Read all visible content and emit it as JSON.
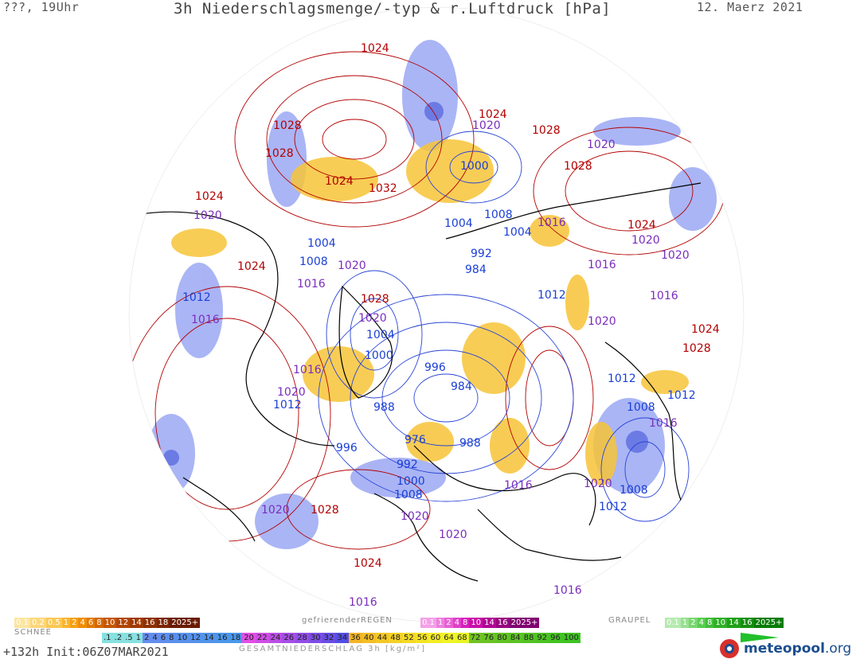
{
  "header": {
    "left": "???, 19Uhr",
    "title": "3h Niederschlagsmenge/-typ & r.Luftdruck [hPa]",
    "date": "12. Maerz 2021"
  },
  "colors": {
    "high_isobar": "#b30000",
    "low_isobar": "#1a3fd6",
    "mid_isobar": "#7a2dbd",
    "rain": "#f5b000",
    "snow": "#7a8cf0",
    "coast": "#000000"
  },
  "isobar_labels": [
    {
      "text": "1024",
      "cls": "high"
    },
    {
      "text": "1028",
      "cls": "high"
    },
    {
      "text": "1028",
      "cls": "high"
    },
    {
      "text": "1024",
      "cls": "high"
    },
    {
      "text": "1032",
      "cls": "high"
    },
    {
      "text": "1024",
      "cls": "high"
    },
    {
      "text": "1020",
      "cls": "mid"
    },
    {
      "text": "1028",
      "cls": "high"
    },
    {
      "text": "1028",
      "cls": "high"
    },
    {
      "text": "1020",
      "cls": "mid"
    },
    {
      "text": "1000",
      "cls": "low"
    },
    {
      "text": "1024",
      "cls": "high"
    },
    {
      "text": "1020",
      "cls": "mid"
    },
    {
      "text": "1004",
      "cls": "low"
    },
    {
      "text": "1008",
      "cls": "low"
    },
    {
      "text": "1016",
      "cls": "mid"
    },
    {
      "text": "1004",
      "cls": "low"
    },
    {
      "text": "1024",
      "cls": "high"
    },
    {
      "text": "1020",
      "cls": "mid"
    },
    {
      "text": "1004",
      "cls": "low"
    },
    {
      "text": "1008",
      "cls": "low"
    },
    {
      "text": "1020",
      "cls": "mid"
    },
    {
      "text": "1024",
      "cls": "high"
    },
    {
      "text": "1016",
      "cls": "mid"
    },
    {
      "text": "992",
      "cls": "low"
    },
    {
      "text": "984",
      "cls": "low"
    },
    {
      "text": "1016",
      "cls": "mid"
    },
    {
      "text": "1020",
      "cls": "mid"
    },
    {
      "text": "1012",
      "cls": "low"
    },
    {
      "text": "1028",
      "cls": "high"
    },
    {
      "text": "1016",
      "cls": "mid"
    },
    {
      "text": "1012",
      "cls": "low"
    },
    {
      "text": "1016",
      "cls": "mid"
    },
    {
      "text": "1020",
      "cls": "mid"
    },
    {
      "text": "1004",
      "cls": "low"
    },
    {
      "text": "1020",
      "cls": "mid"
    },
    {
      "text": "1024",
      "cls": "high"
    },
    {
      "text": "1000",
      "cls": "low"
    },
    {
      "text": "1028",
      "cls": "high"
    },
    {
      "text": "1016",
      "cls": "mid"
    },
    {
      "text": "996",
      "cls": "low"
    },
    {
      "text": "1012",
      "cls": "low"
    },
    {
      "text": "1020",
      "cls": "mid"
    },
    {
      "text": "984",
      "cls": "low"
    },
    {
      "text": "1012",
      "cls": "low"
    },
    {
      "text": "1012",
      "cls": "low"
    },
    {
      "text": "988",
      "cls": "low"
    },
    {
      "text": "1008",
      "cls": "low"
    },
    {
      "text": "1016",
      "cls": "mid"
    },
    {
      "text": "996",
      "cls": "low"
    },
    {
      "text": "976",
      "cls": "low"
    },
    {
      "text": "988",
      "cls": "low"
    },
    {
      "text": "992",
      "cls": "low"
    },
    {
      "text": "1000",
      "cls": "low"
    },
    {
      "text": "1008",
      "cls": "low"
    },
    {
      "text": "1016",
      "cls": "mid"
    },
    {
      "text": "1020",
      "cls": "mid"
    },
    {
      "text": "1008",
      "cls": "low"
    },
    {
      "text": "1012",
      "cls": "low"
    },
    {
      "text": "1020",
      "cls": "mid"
    },
    {
      "text": "1028",
      "cls": "high"
    },
    {
      "text": "1020",
      "cls": "mid"
    },
    {
      "text": "1020",
      "cls": "mid"
    },
    {
      "text": "1024",
      "cls": "high"
    },
    {
      "text": "1016",
      "cls": "mid"
    },
    {
      "text": "1016",
      "cls": "mid"
    }
  ],
  "legend": {
    "rain_label": "",
    "rain": [
      "0.1",
      "0.2",
      "0.5",
      "1",
      "2",
      "4",
      "6",
      "8",
      "10",
      "12",
      "14",
      "16",
      "18",
      "2025+"
    ],
    "snow_title": "SCHNEE",
    "frz_title": "gefrierenderREGEN",
    "frz": [
      "0.1",
      "1",
      "2",
      "4",
      "8",
      "10",
      "14",
      "16",
      "2025+"
    ],
    "graupel_title": "GRAUPEL",
    "graupel": [
      "0.1",
      "1",
      "2",
      "4",
      "8",
      "10",
      "14",
      "16",
      "2025+"
    ],
    "total": [
      ".1",
      ".2",
      ".5",
      "1",
      "2",
      "4",
      "6",
      "8",
      "10",
      "12",
      "14",
      "16",
      "18",
      "20",
      "22",
      "24",
      "26",
      "28",
      "30",
      "32",
      "34",
      "36",
      "40",
      "44",
      "48",
      "52",
      "56",
      "60",
      "64",
      "68",
      "72",
      "76",
      "80",
      "84",
      "88",
      "92",
      "96",
      "100"
    ],
    "total_title": "GESAMTNIEDERSCHLAG 3h [kg/m²]"
  },
  "footer": {
    "left": "+132h Init:06Z07MAR2021",
    "logo": "meteopool",
    "logo_org": ".org"
  }
}
